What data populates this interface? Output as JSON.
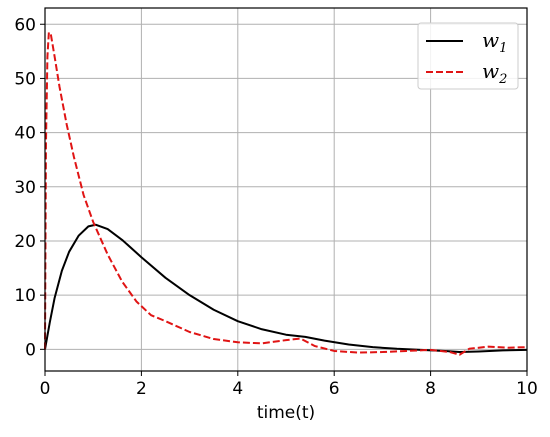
{
  "chart_data": {
    "type": "line",
    "title": "",
    "xlabel": "time(t)",
    "ylabel": "",
    "xlim": [
      0,
      10
    ],
    "ylim": [
      -4,
      63
    ],
    "xticks": [
      "0",
      "2",
      "4",
      "6",
      "8",
      "10"
    ],
    "yticks": [
      "0",
      "10",
      "20",
      "30",
      "40",
      "50",
      "60"
    ],
    "grid": true,
    "legend_position": "top-right",
    "series": [
      {
        "name": "w",
        "subscript": "1",
        "color": "#000000",
        "style": "solid",
        "points": [
          [
            0,
            0
          ],
          [
            0.1,
            5
          ],
          [
            0.2,
            9.5
          ],
          [
            0.35,
            14.5
          ],
          [
            0.5,
            18
          ],
          [
            0.7,
            21
          ],
          [
            0.9,
            22.7
          ],
          [
            1.05,
            23
          ],
          [
            1.3,
            22.2
          ],
          [
            1.6,
            20.2
          ],
          [
            2.0,
            17
          ],
          [
            2.5,
            13.2
          ],
          [
            3.0,
            10
          ],
          [
            3.5,
            7.3
          ],
          [
            4.0,
            5.2
          ],
          [
            4.5,
            3.7
          ],
          [
            5.0,
            2.7
          ],
          [
            5.4,
            2.3
          ],
          [
            5.8,
            1.6
          ],
          [
            6.3,
            0.9
          ],
          [
            6.8,
            0.4
          ],
          [
            7.3,
            0.1
          ],
          [
            7.8,
            -0.1
          ],
          [
            8.3,
            -0.3
          ],
          [
            8.6,
            -0.5
          ],
          [
            9.0,
            -0.4
          ],
          [
            9.5,
            -0.2
          ],
          [
            10,
            -0.1
          ]
        ]
      },
      {
        "name": "w",
        "subscript": "2",
        "color": "#e01414",
        "style": "dashed",
        "points": [
          [
            0,
            0
          ],
          [
            0.02,
            38
          ],
          [
            0.05,
            54
          ],
          [
            0.08,
            58.5
          ],
          [
            0.12,
            58.2
          ],
          [
            0.2,
            54
          ],
          [
            0.3,
            48.5
          ],
          [
            0.45,
            41.5
          ],
          [
            0.6,
            35.5
          ],
          [
            0.8,
            28.5
          ],
          [
            1.0,
            23.5
          ],
          [
            1.3,
            17.5
          ],
          [
            1.6,
            12.5
          ],
          [
            1.9,
            8.8
          ],
          [
            2.2,
            6.3
          ],
          [
            2.5,
            5.2
          ],
          [
            3.0,
            3.2
          ],
          [
            3.5,
            1.9
          ],
          [
            4.0,
            1.3
          ],
          [
            4.5,
            1.1
          ],
          [
            5.0,
            1.7
          ],
          [
            5.3,
            2.0
          ],
          [
            5.6,
            0.6
          ],
          [
            6.0,
            -0.3
          ],
          [
            6.5,
            -0.6
          ],
          [
            7.0,
            -0.5
          ],
          [
            7.5,
            -0.3
          ],
          [
            8.0,
            -0.1
          ],
          [
            8.4,
            -0.5
          ],
          [
            8.6,
            -1.0
          ],
          [
            8.8,
            0.1
          ],
          [
            9.2,
            0.5
          ],
          [
            9.6,
            0.3
          ],
          [
            10,
            0.4
          ]
        ]
      }
    ]
  }
}
